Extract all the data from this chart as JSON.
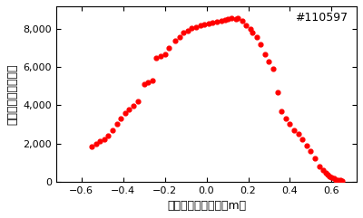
{
  "annotation": "#110597",
  "xlabel": "プラズマ断面半径（m）",
  "ylabel": "イオン温度（万度）",
  "xlim": [
    -0.72,
    0.72
  ],
  "ylim": [
    0,
    9200
  ],
  "xticks": [
    -0.6,
    -0.4,
    -0.2,
    0.0,
    0.2,
    0.4,
    0.6
  ],
  "yticks": [
    0,
    2000,
    4000,
    6000,
    8000
  ],
  "dot_color": "#ff0000",
  "dot_size": 12,
  "x": [
    -0.55,
    -0.53,
    -0.51,
    -0.49,
    -0.47,
    -0.45,
    -0.43,
    -0.41,
    -0.39,
    -0.37,
    -0.35,
    -0.33,
    -0.3,
    -0.28,
    -0.26,
    -0.24,
    -0.22,
    -0.2,
    -0.18,
    -0.15,
    -0.13,
    -0.11,
    -0.09,
    -0.07,
    -0.05,
    -0.03,
    -0.01,
    0.01,
    0.03,
    0.05,
    0.07,
    0.09,
    0.1,
    0.12,
    0.14,
    0.15,
    0.17,
    0.19,
    0.21,
    0.22,
    0.24,
    0.26,
    0.28,
    0.3,
    0.32,
    0.34,
    0.36,
    0.38,
    0.4,
    0.42,
    0.44,
    0.46,
    0.48,
    0.5,
    0.52,
    0.54,
    0.56,
    0.57,
    0.58,
    0.59,
    0.6,
    0.61,
    0.62,
    0.63,
    0.64,
    0.65
  ],
  "y": [
    1850,
    2000,
    2100,
    2200,
    2400,
    2700,
    3000,
    3300,
    3600,
    3800,
    3950,
    4200,
    5100,
    5200,
    5300,
    6500,
    6600,
    6700,
    7000,
    7400,
    7600,
    7800,
    7900,
    8050,
    8100,
    8200,
    8250,
    8300,
    8350,
    8400,
    8450,
    8500,
    8550,
    8600,
    8550,
    8600,
    8450,
    8200,
    8000,
    7800,
    7600,
    7200,
    6700,
    6300,
    5900,
    4700,
    3700,
    3300,
    3000,
    2700,
    2500,
    2200,
    1900,
    1600,
    1200,
    800,
    600,
    450,
    350,
    250,
    200,
    150,
    100,
    80,
    60,
    50
  ]
}
